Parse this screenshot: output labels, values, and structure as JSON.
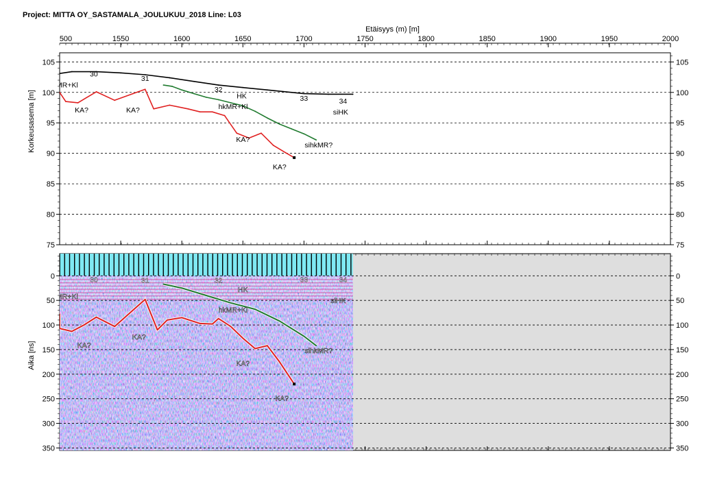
{
  "page_title": "Project: MITTA OY_SASTAMALA_JOULUKUU_2018  Line: L03",
  "chart_data": [
    {
      "type": "line",
      "panel": "elevation",
      "xlabel": "Etäisyys (m) [m]",
      "ylabel": "Korkeusasema [m]",
      "xlim": [
        500,
        2000
      ],
      "ylim": [
        75,
        106.5
      ],
      "x_ticks": [
        500,
        1550,
        1600,
        1650,
        1700,
        1750,
        1800,
        1850,
        1900,
        1950,
        2000
      ],
      "y_ticks": [
        105,
        100,
        95,
        90,
        85,
        80,
        75
      ],
      "grid": "horizontal dashed",
      "series": [
        {
          "color": "#000000",
          "x": [
            500,
            1510,
            1530,
            1550,
            1570,
            1590,
            1610,
            1630,
            1650,
            1670,
            1690,
            1700,
            1720,
            1740
          ],
          "y": [
            103.1,
            103.4,
            103.4,
            103.2,
            102.9,
            102.4,
            101.8,
            101.2,
            100.8,
            100.4,
            100.0,
            99.8,
            99.7,
            99.7
          ]
        },
        {
          "color": "#1f7a2e",
          "x": [
            1585,
            1592,
            1600,
            1610,
            1620,
            1630,
            1640,
            1650,
            1660,
            1670,
            1680,
            1690,
            1700,
            1710
          ],
          "y": [
            101.2,
            101.0,
            100.4,
            99.8,
            99.2,
            98.8,
            98.3,
            97.8,
            96.9,
            95.8,
            94.8,
            94.0,
            93.2,
            92.2
          ]
        },
        {
          "color": "#e02020",
          "x": [
            500,
            1505,
            1515,
            1530,
            1545,
            1560,
            1570,
            1577,
            1590,
            1605,
            1615,
            1625,
            1635,
            1645,
            1655,
            1665,
            1675,
            1685,
            1692
          ],
          "y": [
            100.0,
            98.5,
            98.3,
            100.1,
            98.7,
            99.8,
            100.5,
            97.3,
            97.9,
            97.3,
            96.8,
            96.8,
            96.2,
            93.3,
            92.5,
            93.3,
            91.3,
            90.1,
            89.3
          ]
        }
      ],
      "station_labels": [
        {
          "text": "30",
          "x": 1528,
          "y": 102.6
        },
        {
          "text": "31",
          "x": 1570,
          "y": 101.9
        },
        {
          "text": "32",
          "x": 1630,
          "y": 100.1
        },
        {
          "text": "33",
          "x": 1700,
          "y": 98.6
        },
        {
          "text": "34",
          "x": 1732,
          "y": 98.2
        }
      ],
      "annotations": [
        {
          "text": "hkMR+Kl",
          "x": 1503,
          "y": 100.8
        },
        {
          "text": "KA?",
          "x": 1518,
          "y": 96.7
        },
        {
          "text": "KA?",
          "x": 1560,
          "y": 96.7
        },
        {
          "text": "HK",
          "x": 1649,
          "y": 99.0
        },
        {
          "text": "hkMR+Kl",
          "x": 1642,
          "y": 97.3
        },
        {
          "text": "siHK",
          "x": 1730,
          "y": 96.4
        },
        {
          "text": "KA?",
          "x": 1650,
          "y": 91.9
        },
        {
          "text": "sihkMR?",
          "x": 1712,
          "y": 91.0
        },
        {
          "text": "KA?",
          "x": 1680,
          "y": 87.4
        }
      ]
    },
    {
      "type": "heatmap",
      "panel": "radargram",
      "ylabel": "Aika [ns]",
      "xlim": [
        500,
        2000
      ],
      "ylim": [
        -45,
        355
      ],
      "data_extent_x": [
        500,
        1740
      ],
      "y_ticks": [
        0,
        50,
        100,
        150,
        200,
        250,
        300,
        350
      ],
      "grid": "horizontal dashed",
      "series": [
        {
          "color": "#1f7a2e",
          "x": [
            1585,
            1600,
            1620,
            1640,
            1660,
            1680,
            1700,
            1710
          ],
          "y": [
            17,
            25,
            40,
            55,
            68,
            92,
            123,
            142
          ]
        },
        {
          "color": "#e02020",
          "x": [
            500,
            1500,
            1510,
            1520,
            1530,
            1545,
            1560,
            1570,
            1580,
            1588,
            1600,
            1615,
            1625,
            1630,
            1640,
            1650,
            1660,
            1670,
            1680,
            1692
          ],
          "y": [
            78,
            107,
            113,
            100,
            84,
            103,
            70,
            48,
            110,
            90,
            85,
            97,
            98,
            87,
            103,
            127,
            148,
            142,
            175,
            220
          ]
        }
      ],
      "station_labels": [
        {
          "text": "30",
          "x": 1528,
          "y": 13
        },
        {
          "text": "31",
          "x": 1570,
          "y": 14
        },
        {
          "text": "32",
          "x": 1630,
          "y": 14
        },
        {
          "text": "33",
          "x": 1700,
          "y": 13
        },
        {
          "text": "34",
          "x": 1732,
          "y": 13
        }
      ],
      "annotations": [
        {
          "text": "hkMR+Kl",
          "x": 1503,
          "y": 47
        },
        {
          "text": "HK",
          "x": 1650,
          "y": 33
        },
        {
          "text": "siHK",
          "x": 1728,
          "y": 55
        },
        {
          "text": "hkMR+Kl",
          "x": 1642,
          "y": 74
        },
        {
          "text": "KA?",
          "x": 1565,
          "y": 129
        },
        {
          "text": "KA?",
          "x": 1520,
          "y": 146
        },
        {
          "text": "sihkMR?",
          "x": 1712,
          "y": 157
        },
        {
          "text": "KA?",
          "x": 1650,
          "y": 183
        },
        {
          "text": "KA?",
          "x": 1682,
          "y": 254
        }
      ]
    }
  ]
}
